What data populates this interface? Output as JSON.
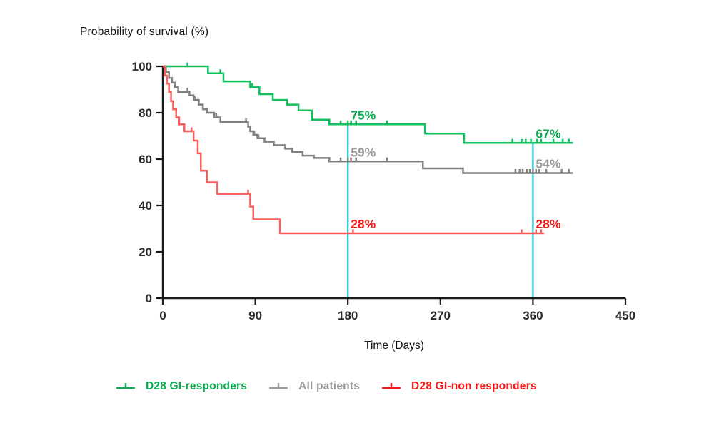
{
  "title": "Probability of survival (%)",
  "x_axis": {
    "label": "Time (Days)",
    "ticks": [
      0,
      90,
      180,
      270,
      360,
      450
    ],
    "range": [
      0,
      450
    ]
  },
  "y_axis": {
    "ticks": [
      0,
      20,
      40,
      60,
      80,
      100
    ],
    "range": [
      0,
      100
    ]
  },
  "colors": {
    "axis": "#1a1a1a",
    "reference_line": "#2bcbd8",
    "green_curve": "#12c05e",
    "green_text": "#0bab53",
    "gray_curve": "#808080",
    "gray_text": "#999999",
    "red_curve": "#fa5f5d",
    "red_text": "#fb1515"
  },
  "reference_lines": [
    {
      "day": 180,
      "top_pct": 75
    },
    {
      "day": 360,
      "top_pct": 67
    }
  ],
  "chart_data": {
    "type": "line",
    "subtype": "kaplan-meier-step",
    "title": "Probability of survival (%)",
    "xlabel": "Time (Days)",
    "ylabel": "Probability of survival (%)",
    "xlim": [
      0,
      450
    ],
    "ylim": [
      0,
      100
    ],
    "grid": false,
    "series": [
      {
        "name": "D28 GI-responders",
        "color_key": "green_curve",
        "text_color_key": "green_text",
        "steps": [
          [
            0,
            100
          ],
          [
            44,
            97
          ],
          [
            59,
            93.5
          ],
          [
            85,
            91
          ],
          [
            94,
            88
          ],
          [
            107,
            85.5
          ],
          [
            121,
            83.5
          ],
          [
            132,
            81
          ],
          [
            145,
            77
          ],
          [
            162,
            75
          ],
          [
            255,
            71
          ],
          [
            293,
            67
          ]
        ],
        "end_day": 399,
        "censor_days": [
          24,
          56,
          87,
          173,
          180,
          183,
          188,
          218,
          340,
          349,
          353,
          358,
          364,
          368,
          380,
          389,
          395
        ],
        "annotations": [
          {
            "day": 180,
            "text": "75%"
          },
          {
            "day": 360,
            "text": "67%"
          }
        ]
      },
      {
        "name": "All patients",
        "color_key": "gray_curve",
        "text_color_key": "gray_text",
        "steps": [
          [
            0,
            100
          ],
          [
            3,
            97.5
          ],
          [
            6,
            95
          ],
          [
            9,
            93
          ],
          [
            12,
            91
          ],
          [
            15,
            89
          ],
          [
            26,
            87.5
          ],
          [
            30,
            85.5
          ],
          [
            35,
            83.5
          ],
          [
            39,
            81.5
          ],
          [
            43,
            80
          ],
          [
            50,
            78
          ],
          [
            56,
            76
          ],
          [
            83,
            74
          ],
          [
            85,
            72
          ],
          [
            88,
            70.5
          ],
          [
            92,
            69
          ],
          [
            99,
            67.5
          ],
          [
            108,
            66
          ],
          [
            119,
            64.5
          ],
          [
            126,
            63
          ],
          [
            136,
            61.5
          ],
          [
            147,
            60.5
          ],
          [
            162,
            59
          ],
          [
            253,
            56
          ],
          [
            292,
            54
          ]
        ],
        "end_day": 399,
        "censor_days": [
          24,
          31,
          52,
          81,
          89,
          93,
          173,
          180,
          183,
          188,
          218,
          343,
          347,
          350,
          354,
          357,
          360,
          363,
          366,
          373,
          388,
          395
        ],
        "annotations": [
          {
            "day": 180,
            "text": "59%"
          },
          {
            "day": 360,
            "text": "54%"
          }
        ]
      },
      {
        "name": "D28 GI-non responders",
        "color_key": "red_curve",
        "text_color_key": "red_text",
        "steps": [
          [
            0,
            100
          ],
          [
            2,
            96
          ],
          [
            4,
            92.5
          ],
          [
            6,
            89
          ],
          [
            8,
            85
          ],
          [
            10,
            81.5
          ],
          [
            13,
            78
          ],
          [
            16,
            75
          ],
          [
            21,
            72
          ],
          [
            30,
            68
          ],
          [
            34,
            62.5
          ],
          [
            37,
            55
          ],
          [
            43,
            50
          ],
          [
            53,
            45
          ],
          [
            85,
            39.5
          ],
          [
            88,
            34
          ],
          [
            114,
            28
          ]
        ],
        "end_day": 371,
        "censor_days": [
          28,
          83,
          185,
          349,
          363,
          368
        ],
        "annotations": [
          {
            "day": 180,
            "text": "28%"
          },
          {
            "day": 360,
            "text": "28%"
          }
        ]
      }
    ]
  },
  "legend": [
    {
      "label": "D28 GI-responders",
      "color_key": "green_text"
    },
    {
      "label": "All patients",
      "color_key": "gray_text"
    },
    {
      "label": "D28 GI-non responders",
      "color_key": "red_text"
    }
  ]
}
